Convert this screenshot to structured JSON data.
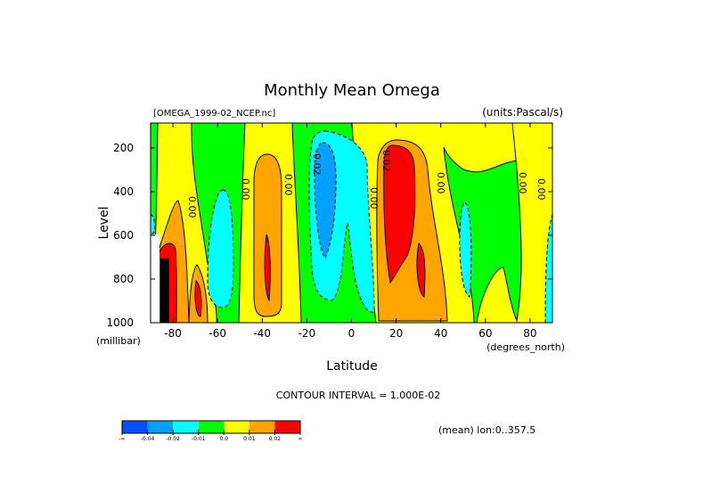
{
  "chart_data": {
    "type": "contour",
    "title": "Monthly Mean Omega",
    "subtitle_left": "[OMEGA_1999-02_NCEP.nc]",
    "subtitle_right": "(units:Pascal/s)",
    "xlabel": "Latitude",
    "xunits": "(degrees_north)",
    "ylabel": "Level",
    "yunits": "(millibar)",
    "xlim": [
      -90,
      90
    ],
    "ylim": [
      1000,
      86
    ],
    "x_ticks": [
      "-80",
      "-60",
      "-40",
      "-20",
      "0",
      "20",
      "40",
      "60",
      "80"
    ],
    "x_tick_values": [
      -80,
      -60,
      -40,
      -20,
      0,
      20,
      40,
      60,
      80
    ],
    "y_ticks": [
      "200",
      "400",
      "600",
      "800",
      "1000"
    ],
    "y_tick_values": [
      200,
      400,
      600,
      800,
      1000
    ],
    "contour_labels": [
      "0.00",
      "-0.02",
      "0.02"
    ],
    "contour_interval_text": "CONTOUR INTERVAL = 1.000E-02",
    "mean_note": "(mean) lon:0..357.5",
    "colorbar": {
      "labels": [
        "-∞",
        "-0.04",
        "-0.02",
        "-0.01",
        "0.0",
        "0.01",
        "0.02",
        "∞"
      ],
      "colors": [
        "#0050ff",
        "#00a0ff",
        "#00ffff",
        "#00ff00",
        "#ffff00",
        "#ffa500",
        "#ff0000"
      ]
    }
  }
}
